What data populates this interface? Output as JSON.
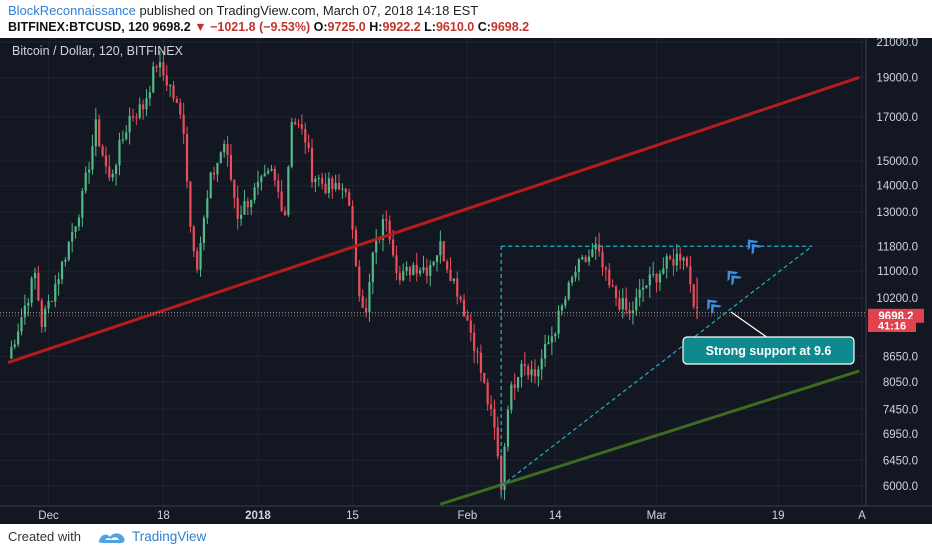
{
  "header": {
    "author": "BlockReconnaissance",
    "published_text": "published on TradingView.com, March 07, 2018 14:18 EST",
    "symbol": "BITFINEX:BTCUSD, 120",
    "last": "9698.2",
    "change": "−1021.8 (−9.53%)",
    "o_label": "O:",
    "o_value": "9725.0",
    "h_label": "H:",
    "h_value": "9922.2",
    "l_label": "L:",
    "l_value": "9610.0",
    "c_label": "C:",
    "c_value": "9698.2"
  },
  "chart_title": "Bitcoin / Dollar, 120, BITFINEX",
  "price_badge": "9698.2",
  "countdown_badge": "41:16",
  "annotation": "Strong support at 9.6",
  "footer": {
    "created_with": "Created with",
    "brand": "TradingView"
  },
  "colors": {
    "background": "#131722",
    "up": "#53b987",
    "down": "#eb4d5c",
    "resistance_line": "#b71c1c",
    "support_line": "#3d6b1f",
    "projection": "#1fb3c9",
    "annotation_fill": "#0e8a8f",
    "arrows": "#3d8ee0",
    "price_label": "#e0424f"
  },
  "chart_data": {
    "type": "candlestick",
    "symbol": "BTCUSD",
    "exchange": "BITFINEX",
    "interval": "120",
    "scale": "log",
    "y_ticks": [
      6000,
      6450,
      6950,
      7450,
      8050,
      8650,
      9698.2,
      10200,
      11000,
      11800,
      13000,
      14000,
      15000,
      17000,
      19000,
      21000
    ],
    "x_ticks": [
      "Dec",
      "18",
      "2018",
      "15",
      "Feb",
      "14",
      "Mar",
      "19",
      "A"
    ],
    "current_price": 9698.2,
    "ohlc": {
      "open": 9725.0,
      "high": 9922.2,
      "low": 9610.0,
      "close": 9698.2
    },
    "price_path": [
      {
        "date": "2017-11-25",
        "price": 8600
      },
      {
        "date": "2017-11-29",
        "price": 10900
      },
      {
        "date": "2017-11-30",
        "price": 9500
      },
      {
        "date": "2017-12-03",
        "price": 11200
      },
      {
        "date": "2017-12-06",
        "price": 13500
      },
      {
        "date": "2017-12-08",
        "price": 16500
      },
      {
        "date": "2017-12-10",
        "price": 14200
      },
      {
        "date": "2017-12-13",
        "price": 17000
      },
      {
        "date": "2017-12-15",
        "price": 17500
      },
      {
        "date": "2017-12-17",
        "price": 19800
      },
      {
        "date": "2017-12-19",
        "price": 18500
      },
      {
        "date": "2017-12-21",
        "price": 16500
      },
      {
        "date": "2017-12-22",
        "price": 12500
      },
      {
        "date": "2017-12-23",
        "price": 11300
      },
      {
        "date": "2017-12-25",
        "price": 14200
      },
      {
        "date": "2017-12-27",
        "price": 15800
      },
      {
        "date": "2017-12-29",
        "price": 12900
      },
      {
        "date": "2017-12-31",
        "price": 13600
      },
      {
        "date": "2018-01-03",
        "price": 14500
      },
      {
        "date": "2018-01-05",
        "price": 13000
      },
      {
        "date": "2018-01-06",
        "price": 17000
      },
      {
        "date": "2018-01-08",
        "price": 16000
      },
      {
        "date": "2018-01-09",
        "price": 14500
      },
      {
        "date": "2018-01-11",
        "price": 14000
      },
      {
        "date": "2018-01-13",
        "price": 13800
      },
      {
        "date": "2018-01-14",
        "price": 14000
      },
      {
        "date": "2018-01-16",
        "price": 10500
      },
      {
        "date": "2018-01-17",
        "price": 9700
      },
      {
        "date": "2018-01-18",
        "price": 11500
      },
      {
        "date": "2018-01-20",
        "price": 12900
      },
      {
        "date": "2018-01-22",
        "price": 10700
      },
      {
        "date": "2018-01-24",
        "price": 11200
      },
      {
        "date": "2018-01-26",
        "price": 11100
      },
      {
        "date": "2018-01-28",
        "price": 11800
      },
      {
        "date": "2018-01-31",
        "price": 10200
      },
      {
        "date": "2018-02-02",
        "price": 9000
      },
      {
        "date": "2018-02-05",
        "price": 7000
      },
      {
        "date": "2018-02-06",
        "price": 6000
      },
      {
        "date": "2018-02-07",
        "price": 7600
      },
      {
        "date": "2018-02-09",
        "price": 8600
      },
      {
        "date": "2018-02-11",
        "price": 8200
      },
      {
        "date": "2018-02-14",
        "price": 9400
      },
      {
        "date": "2018-02-17",
        "price": 11000
      },
      {
        "date": "2018-02-20",
        "price": 11700
      },
      {
        "date": "2018-02-22",
        "price": 10500
      },
      {
        "date": "2018-02-25",
        "price": 9700
      },
      {
        "date": "2018-02-27",
        "price": 10500
      },
      {
        "date": "2018-03-01",
        "price": 10900
      },
      {
        "date": "2018-03-03",
        "price": 11300
      },
      {
        "date": "2018-03-05",
        "price": 11600
      },
      {
        "date": "2018-03-06",
        "price": 10700
      },
      {
        "date": "2018-03-07",
        "price": 9698.2
      }
    ],
    "drawings": {
      "resistance_line": [
        {
          "date": "2017-11-25",
          "price": 8500
        },
        {
          "date": "2018-03-31",
          "price": 19000
        }
      ],
      "support_line": [
        {
          "date": "2018-01-28",
          "price": 5700
        },
        {
          "date": "2018-03-31",
          "price": 8300
        }
      ],
      "dashed_support": [
        {
          "date": "2018-02-06",
          "price": 6000
        },
        {
          "date": "2018-03-24",
          "price": 11800
        }
      ],
      "dashed_top": [
        {
          "date": "2018-02-06",
          "price": 11800
        },
        {
          "date": "2018-03-24",
          "price": 11800
        }
      ],
      "dashed_vertical": [
        {
          "date": "2018-02-06",
          "price": 5850
        },
        {
          "date": "2018-02-06",
          "price": 11800
        }
      ]
    }
  }
}
